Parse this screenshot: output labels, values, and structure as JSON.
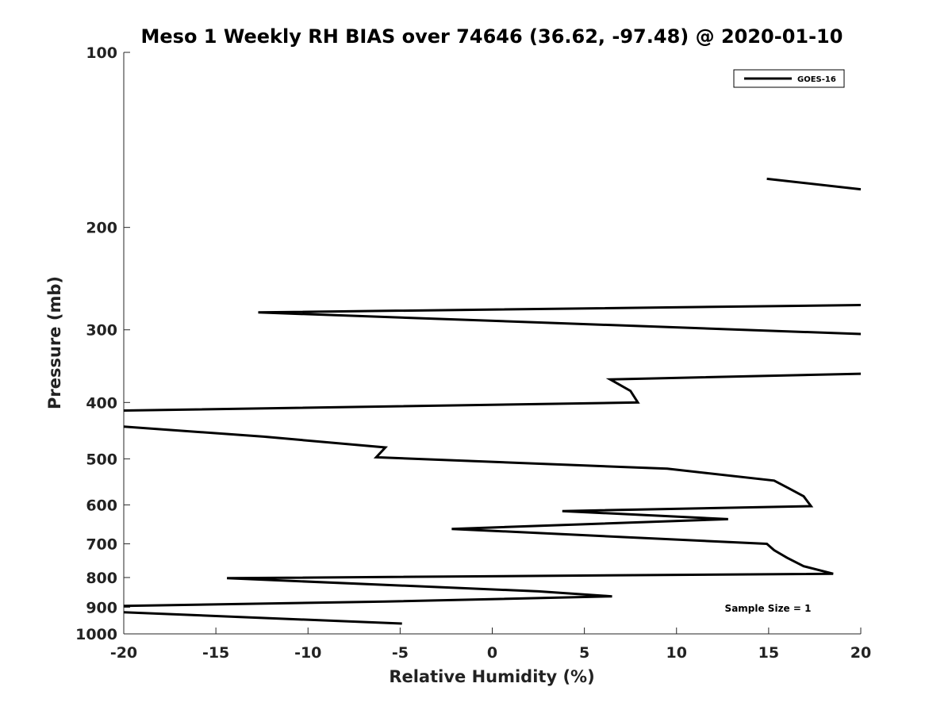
{
  "chart_data": {
    "type": "line",
    "title": "Meso 1 Weekly RH BIAS over 74646 (36.62, -97.48) @ 2020-01-10",
    "xlabel": "Relative Humidity (%)",
    "ylabel": "Pressure (mb)",
    "xlim": [
      -20,
      20
    ],
    "ylim": [
      100,
      1000
    ],
    "y_scale": "log",
    "y_reversed": true,
    "x_ticks": [
      -20,
      -15,
      -10,
      -5,
      0,
      5,
      10,
      15,
      20
    ],
    "x_tick_labels": [
      "-20",
      "-15",
      "-10",
      "-5",
      "0",
      "5",
      "10",
      "15",
      "20"
    ],
    "y_ticks": [
      100,
      200,
      300,
      400,
      500,
      600,
      700,
      800,
      900,
      1000
    ],
    "y_tick_labels": [
      "100",
      "200",
      "300",
      "400",
      "500",
      "600",
      "700",
      "800",
      "900",
      "1000"
    ],
    "grid": false,
    "legend_position": "top-right",
    "series": [
      {
        "name": "GOES-16",
        "color": "#000000",
        "segments": [
          [
            [
              14.9,
              165
            ],
            [
              20,
              172
            ]
          ],
          [
            [
              20,
              272
            ],
            [
              -12.7,
              280
            ],
            [
              20,
              305
            ]
          ],
          [
            [
              20,
              357
            ],
            [
              6.4,
              365
            ],
            [
              7.5,
              382
            ],
            [
              7.9,
              400
            ],
            [
              -20,
              413
            ]
          ],
          [
            [
              -20,
              440
            ],
            [
              -12.4,
              458
            ],
            [
              -5.8,
              478
            ],
            [
              -6.3,
              497
            ],
            [
              9.5,
              520
            ],
            [
              15.3,
              545
            ],
            [
              16.1,
              562
            ],
            [
              16.9,
              580
            ],
            [
              17.3,
              603
            ],
            [
              3.8,
              615
            ],
            [
              12.8,
              635
            ],
            [
              -2.2,
              660
            ],
            [
              14.9,
              700
            ],
            [
              15.3,
              718
            ],
            [
              16.0,
              740
            ],
            [
              16.9,
              765
            ],
            [
              18.5,
              788
            ],
            [
              -14.4,
              802
            ],
            [
              2.5,
              845
            ],
            [
              6.5,
              862
            ],
            [
              -5.8,
              880
            ],
            [
              -20,
              895
            ]
          ],
          [
            [
              -20,
              918
            ],
            [
              -4.9,
              960
            ]
          ]
        ]
      }
    ],
    "annotations": [
      "Sample Size = 1"
    ]
  }
}
